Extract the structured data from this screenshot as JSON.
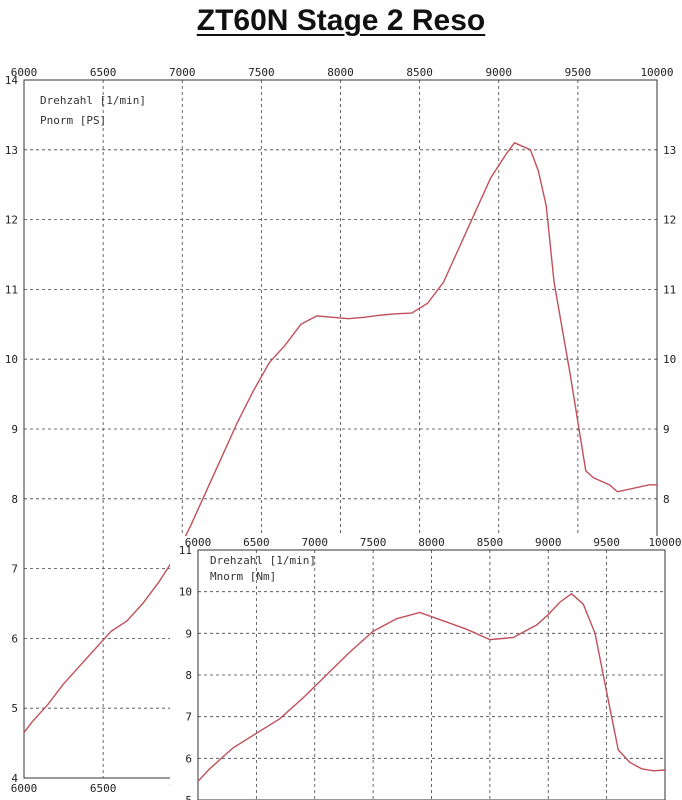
{
  "title": "ZT60N  Stage 2  Reso",
  "chart_data": [
    {
      "type": "line",
      "name_key": "power",
      "legend": [
        "Drehzahl [1/min]",
        "Pnorm [PS]"
      ],
      "x_ticks": [
        6000,
        6500,
        7000,
        7500,
        8000,
        8500,
        9000,
        9500,
        10000
      ],
      "y_ticks": [
        4,
        5,
        6,
        7,
        8,
        9,
        10,
        11,
        12,
        13,
        14
      ],
      "xlim": [
        6000,
        10000
      ],
      "ylim": [
        4,
        14
      ],
      "grid": true,
      "x": [
        6000,
        6050,
        6150,
        6250,
        6350,
        6450,
        6550,
        6650,
        6750,
        6850,
        6950,
        7050,
        7150,
        7250,
        7350,
        7450,
        7550,
        7650,
        7750,
        7850,
        7950,
        8050,
        8150,
        8250,
        8350,
        8450,
        8550,
        8650,
        8750,
        8850,
        8950,
        9050,
        9100,
        9200,
        9250,
        9300,
        9350,
        9450,
        9550,
        9600,
        9650,
        9700,
        9750,
        9850,
        9950,
        10000
      ],
      "y": [
        4.65,
        4.8,
        5.05,
        5.35,
        5.6,
        5.85,
        6.1,
        6.25,
        6.5,
        6.8,
        7.15,
        7.6,
        8.1,
        8.6,
        9.1,
        9.55,
        9.95,
        10.2,
        10.5,
        10.62,
        10.6,
        10.58,
        10.6,
        10.63,
        10.65,
        10.66,
        10.8,
        11.1,
        11.6,
        12.1,
        12.6,
        12.95,
        13.1,
        13.0,
        12.7,
        12.2,
        11.1,
        9.8,
        8.4,
        8.3,
        8.25,
        8.2,
        8.1,
        8.15,
        8.2,
        8.2
      ]
    },
    {
      "type": "line",
      "name_key": "torque",
      "legend": [
        "Drehzahl [1/min]",
        "Mnorm [Nm]"
      ],
      "x_ticks": [
        6000,
        6500,
        7000,
        7500,
        8000,
        8500,
        9000,
        9500,
        10000
      ],
      "y_ticks": [
        5,
        6,
        7,
        8,
        9,
        10,
        11
      ],
      "xlim": [
        6000,
        10000
      ],
      "ylim": [
        5,
        11
      ],
      "grid": true,
      "x": [
        6000,
        6100,
        6300,
        6500,
        6700,
        6900,
        7100,
        7300,
        7500,
        7700,
        7900,
        8100,
        8300,
        8500,
        8700,
        8900,
        9000,
        9100,
        9200,
        9300,
        9400,
        9500,
        9600,
        9700,
        9800,
        9900,
        10000
      ],
      "y": [
        5.45,
        5.75,
        6.25,
        6.6,
        6.95,
        7.45,
        8.0,
        8.55,
        9.05,
        9.35,
        9.5,
        9.3,
        9.1,
        8.85,
        8.9,
        9.2,
        9.45,
        9.75,
        9.95,
        9.7,
        9.0,
        7.6,
        6.2,
        5.9,
        5.75,
        5.7,
        5.72
      ]
    }
  ]
}
